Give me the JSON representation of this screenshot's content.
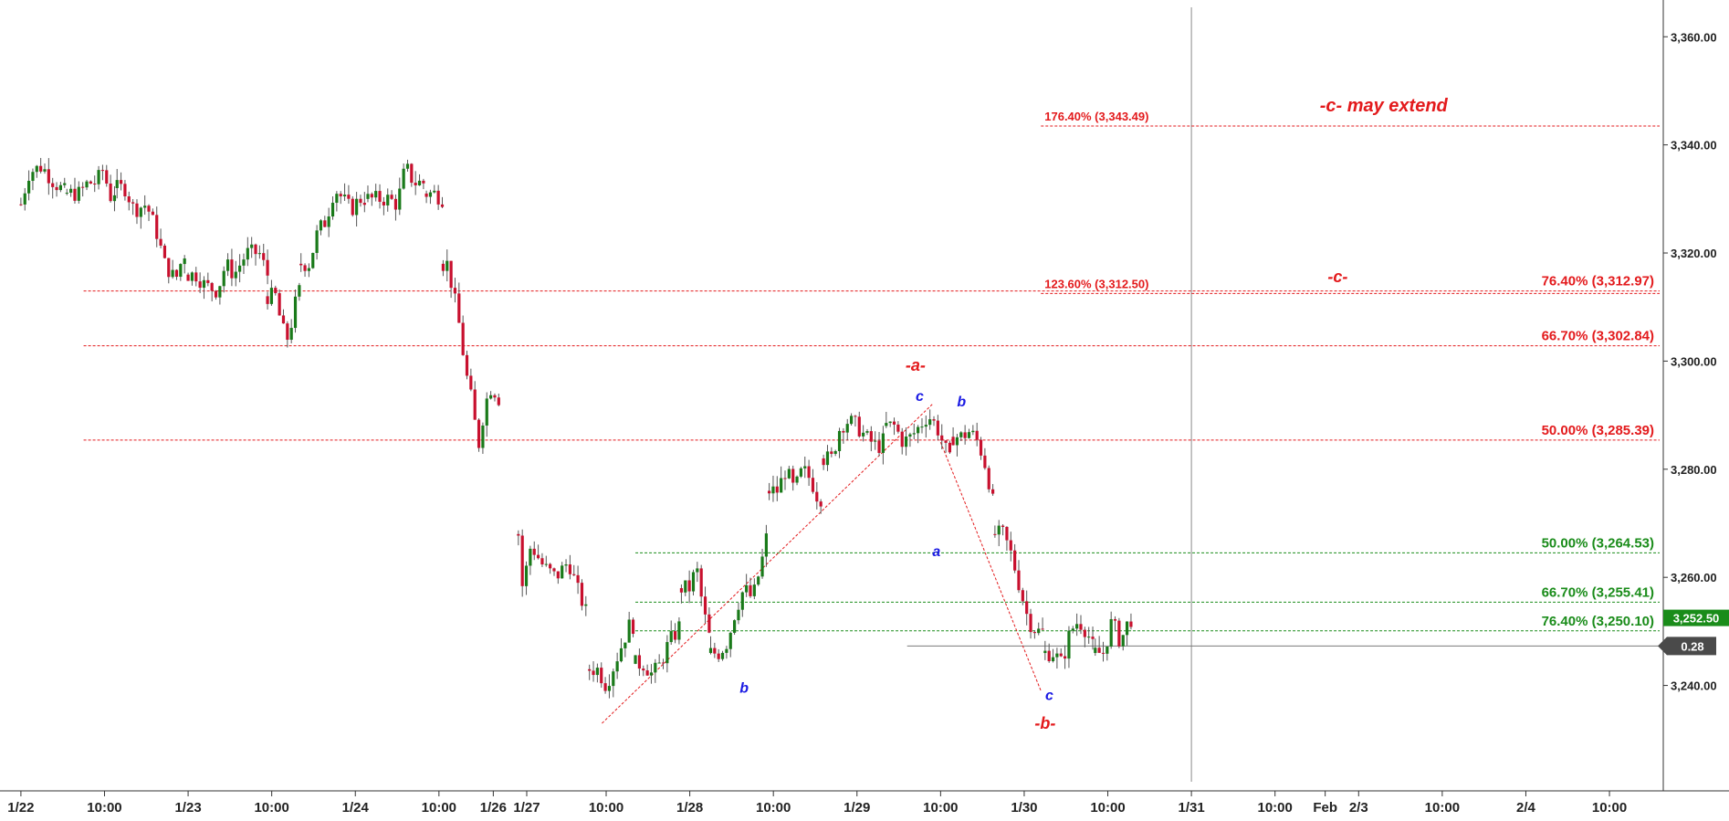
{
  "chart_data": {
    "type": "candlestick",
    "y_axis": {
      "ticks": [
        "3,360.00",
        "3,340.00",
        "3,320.00",
        "3,300.00",
        "3,280.00",
        "3,260.00",
        "3,240.00"
      ],
      "tick_values": [
        3360,
        3340,
        3320,
        3300,
        3280,
        3260,
        3240
      ],
      "ylim": [
        3220.5,
        3366.8
      ],
      "position": "right"
    },
    "x_axis": {
      "labels": [
        {
          "label": "1/22",
          "t": 0.0
        },
        {
          "label": "10:00",
          "t": 1.0
        },
        {
          "label": "1/23",
          "t": 2.0
        },
        {
          "label": "10:00",
          "t": 3.0
        },
        {
          "label": "1/24",
          "t": 4.0
        },
        {
          "label": "10:00",
          "t": 5.0
        },
        {
          "label": "1/26",
          "t": 5.65
        },
        {
          "label": "1/27",
          "t": 6.05
        },
        {
          "label": "10:00",
          "t": 7.0
        },
        {
          "label": "1/28",
          "t": 8.0
        },
        {
          "label": "10:00",
          "t": 9.0
        },
        {
          "label": "1/29",
          "t": 10.0
        },
        {
          "label": "10:00",
          "t": 11.0
        },
        {
          "label": "1/30",
          "t": 12.0
        },
        {
          "label": "10:00",
          "t": 13.0
        },
        {
          "label": "1/31",
          "t": 14.0
        },
        {
          "label": "10:00",
          "t": 15.0
        },
        {
          "label": "Feb",
          "t": 15.6
        },
        {
          "label": "2/3",
          "t": 16.0
        },
        {
          "label": "10:00",
          "t": 17.0
        },
        {
          "label": "2/4",
          "t": 18.0
        },
        {
          "label": "10:00",
          "t": 19.0
        }
      ],
      "xlim": [
        -0.25,
        19.6
      ]
    },
    "series": [
      {
        "segments": [
          {
            "t0": 0.0,
            "t1": 0.55,
            "o": 3329,
            "l": [
              [
                0.1,
                3335
              ],
              [
                0.25,
                3336
              ],
              [
                0.4,
                3333
              ],
              [
                0.55,
                3331
              ]
            ]
          },
          {
            "t0": 0.55,
            "t1": 1.15,
            "l": [
              [
                0.7,
                3331
              ],
              [
                0.8,
                3333
              ],
              [
                0.9,
                3333
              ],
              [
                1.0,
                3336
              ],
              [
                1.05,
                3330
              ],
              [
                1.15,
                3332
              ]
            ]
          },
          {
            "t0": 1.15,
            "t1": 2.0,
            "l": [
              [
                1.25,
                3332
              ],
              [
                1.35,
                3328
              ],
              [
                1.5,
                3329
              ],
              [
                1.62,
                3324
              ],
              [
                1.72,
                3318
              ],
              [
                1.85,
                3315
              ],
              [
                1.95,
                3320
              ],
              [
                2.0,
                3319
              ]
            ]
          },
          {
            "t0": 2.0,
            "t1": 2.95,
            "l": [
              [
                2.1,
                3316
              ],
              [
                2.2,
                3314
              ],
              [
                2.35,
                3313
              ],
              [
                2.45,
                3318
              ],
              [
                2.55,
                3316
              ],
              [
                2.7,
                3320
              ],
              [
                2.85,
                3320
              ],
              [
                2.95,
                3316
              ]
            ]
          },
          {
            "t0": 2.95,
            "t1": 3.35,
            "l": [
              [
                3.05,
                3312
              ],
              [
                3.12,
                3306
              ],
              [
                3.2,
                3304
              ],
              [
                3.27,
                3310
              ],
              [
                3.35,
                3314
              ]
            ]
          },
          {
            "t0": 3.35,
            "t1": 4.15,
            "l": [
              [
                3.45,
                3318
              ],
              [
                3.55,
                3324
              ],
              [
                3.65,
                3326
              ],
              [
                3.75,
                3332
              ],
              [
                3.85,
                3330
              ],
              [
                3.95,
                3328
              ],
              [
                4.05,
                3330
              ],
              [
                4.15,
                3330
              ]
            ]
          },
          {
            "t0": 4.15,
            "t1": 4.85,
            "l": [
              [
                4.25,
                3330
              ],
              [
                4.4,
                3330
              ],
              [
                4.5,
                3329
              ],
              [
                4.6,
                3336
              ],
              [
                4.7,
                3333
              ],
              [
                4.85,
                3333
              ]
            ]
          },
          {
            "t0": 4.85,
            "t1": 5.05,
            "l": [
              [
                4.95,
                3331
              ],
              [
                5.05,
                3330
              ]
            ]
          },
          {
            "t0": 5.05,
            "t1": 5.75,
            "l": [
              [
                5.1,
                3318
              ],
              [
                5.18,
                3312
              ],
              [
                5.25,
                3306
              ],
              [
                5.32,
                3298
              ],
              [
                5.4,
                3292
              ],
              [
                5.47,
                3284
              ],
              [
                5.55,
                3292
              ],
              [
                5.62,
                3295
              ],
              [
                5.7,
                3294
              ],
              [
                5.75,
                3291
              ]
            ]
          },
          {
            "t0": 5.95,
            "t1": 6.8,
            "o": 3268,
            "l": [
              [
                6.0,
                3258
              ],
              [
                6.1,
                3266
              ],
              [
                6.25,
                3262
              ],
              [
                6.4,
                3260
              ],
              [
                6.55,
                3263
              ],
              [
                6.65,
                3258
              ],
              [
                6.8,
                3252
              ]
            ]
          },
          {
            "t0": 6.8,
            "t1": 7.35,
            "l": [
              [
                6.9,
                3243
              ],
              [
                7.0,
                3240
              ],
              [
                7.1,
                3244
              ],
              [
                7.2,
                3248
              ],
              [
                7.3,
                3252
              ],
              [
                7.35,
                3250
              ]
            ]
          },
          {
            "t0": 7.35,
            "t1": 7.9,
            "l": [
              [
                7.45,
                3244
              ],
              [
                7.55,
                3242
              ],
              [
                7.65,
                3244
              ],
              [
                7.75,
                3248
              ],
              [
                7.85,
                3250
              ],
              [
                7.9,
                3252
              ]
            ]
          },
          {
            "t0": 7.9,
            "t1": 8.25,
            "l": [
              [
                8.0,
                3258
              ],
              [
                8.08,
                3262
              ],
              [
                8.16,
                3254
              ],
              [
                8.25,
                3248
              ]
            ]
          },
          {
            "t0": 8.25,
            "t1": 8.95,
            "l": [
              [
                8.35,
                3246
              ],
              [
                8.45,
                3248
              ],
              [
                8.55,
                3254
              ],
              [
                8.65,
                3258
              ],
              [
                8.75,
                3256
              ],
              [
                8.85,
                3262
              ],
              [
                8.95,
                3270
              ]
            ]
          },
          {
            "t0": 8.95,
            "t1": 9.6,
            "l": [
              [
                9.05,
                3276
              ],
              [
                9.15,
                3280
              ],
              [
                9.25,
                3276
              ],
              [
                9.35,
                3280
              ],
              [
                9.45,
                3278
              ],
              [
                9.55,
                3274
              ],
              [
                9.6,
                3276
              ]
            ]
          },
          {
            "t0": 9.6,
            "t1": 10.35,
            "l": [
              [
                9.7,
                3282
              ],
              [
                9.8,
                3288
              ],
              [
                9.9,
                3289
              ],
              [
                10.0,
                3288
              ],
              [
                10.1,
                3286
              ],
              [
                10.25,
                3284
              ],
              [
                10.35,
                3286
              ]
            ]
          },
          {
            "t0": 10.35,
            "t1": 11.15,
            "l": [
              [
                10.45,
                3288
              ],
              [
                10.55,
                3285
              ],
              [
                10.65,
                3286
              ],
              [
                10.75,
                3288
              ],
              [
                10.85,
                3290
              ],
              [
                10.95,
                3288
              ],
              [
                11.05,
                3284
              ],
              [
                11.15,
                3280
              ]
            ]
          },
          {
            "t0": 11.15,
            "t1": 11.65,
            "l": [
              [
                11.25,
                3286
              ],
              [
                11.35,
                3287
              ],
              [
                11.45,
                3285
              ],
              [
                11.55,
                3280
              ],
              [
                11.65,
                3272
              ]
            ]
          },
          {
            "t0": 11.65,
            "t1": 12.25,
            "l": [
              [
                11.75,
                3268
              ],
              [
                11.85,
                3264
              ],
              [
                11.95,
                3258
              ],
              [
                12.05,
                3252
              ],
              [
                12.15,
                3250
              ],
              [
                12.25,
                3250
              ]
            ]
          },
          {
            "t0": 12.25,
            "t1": 12.85,
            "l": [
              [
                12.35,
                3246
              ],
              [
                12.45,
                3244
              ],
              [
                12.55,
                3250
              ],
              [
                12.65,
                3252
              ],
              [
                12.75,
                3250
              ],
              [
                12.85,
                3246
              ]
            ]
          },
          {
            "t0": 12.85,
            "t1": 13.3,
            "l": [
              [
                12.95,
                3246
              ],
              [
                13.05,
                3252
              ],
              [
                13.15,
                3248
              ],
              [
                13.25,
                3252
              ],
              [
                13.3,
                3252.5
              ]
            ]
          }
        ]
      }
    ],
    "reference_lines": [
      {
        "value": 3343.49,
        "color": "#e31a1c",
        "t_start": 12.2,
        "label": "176.40% (3,343.49)",
        "label_side": "left"
      },
      {
        "value": 3312.97,
        "color": "#e31a1c",
        "t_start": 0.75,
        "label": "76.40% (3,312.97)",
        "label_side": "right"
      },
      {
        "value": 3312.5,
        "color": "#e31a1c",
        "t_start": 12.2,
        "label": "123.60% (3,312.50)",
        "label_side": "left"
      },
      {
        "value": 3302.84,
        "color": "#e31a1c",
        "t_start": 0.75,
        "label": "66.70% (3,302.84)",
        "label_side": "right"
      },
      {
        "value": 3285.39,
        "color": "#e31a1c",
        "t_start": 0.75,
        "label": "50.00% (3,285.39)",
        "label_side": "right"
      },
      {
        "value": 3264.53,
        "color": "#1a8c1a",
        "t_start": 7.35,
        "label": "50.00% (3,264.53)",
        "label_side": "right"
      },
      {
        "value": 3255.41,
        "color": "#1a8c1a",
        "t_start": 7.35,
        "label": "66.70% (3,255.41)",
        "label_side": "right"
      },
      {
        "value": 3250.1,
        "color": "#1a8c1a",
        "t_start": 7.35,
        "label": "76.40% (3,250.10)",
        "label_side": "right"
      }
    ],
    "current_price": {
      "value": 3252.5,
      "label": "3,252.50",
      "color": "#1a8c1a"
    },
    "gray_line": {
      "value": 3247.3,
      "t_start": 10.6,
      "label": "0.28",
      "color": "#4a4a4a"
    },
    "vertical_line": {
      "t": 14.0
    },
    "trend_lines": [
      {
        "from": [
          6.95,
          3233
        ],
        "to": [
          10.9,
          3292
        ]
      },
      {
        "from": [
          11.0,
          3285
        ],
        "to": [
          12.2,
          3239
        ]
      }
    ],
    "annotations": [
      {
        "text": "-c- may extend",
        "t": 16.3,
        "y": 3346.2,
        "color": "#e31a1c",
        "style": "italic-bold",
        "size": 20
      },
      {
        "text": "-c-",
        "t": 15.75,
        "y": 3314.6,
        "color": "#e31a1c",
        "style": "italic-bold",
        "size": 18
      },
      {
        "text": "-a-",
        "t": 10.7,
        "y": 3298.2,
        "color": "#e31a1c",
        "style": "italic-bold",
        "size": 18
      },
      {
        "text": "c",
        "t": 10.75,
        "y": 3292.6,
        "color": "#1a1ae3",
        "style": "italic-bold",
        "size": 16
      },
      {
        "text": "b",
        "t": 11.25,
        "y": 3291.6,
        "color": "#1a1ae3",
        "style": "italic-bold",
        "size": 16
      },
      {
        "text": "a",
        "t": 10.95,
        "y": 3263.9,
        "color": "#1a1ae3",
        "style": "italic-bold",
        "size": 16
      },
      {
        "text": "b",
        "t": 8.65,
        "y": 3238.7,
        "color": "#1a1ae3",
        "style": "italic-bold",
        "size": 16
      },
      {
        "text": "c",
        "t": 12.3,
        "y": 3237.3,
        "color": "#1a1ae3",
        "style": "italic-bold",
        "size": 16
      },
      {
        "text": "-b-",
        "t": 12.25,
        "y": 3232.0,
        "color": "#e31a1c",
        "style": "italic-bold",
        "size": 18
      }
    ],
    "grid": false
  }
}
